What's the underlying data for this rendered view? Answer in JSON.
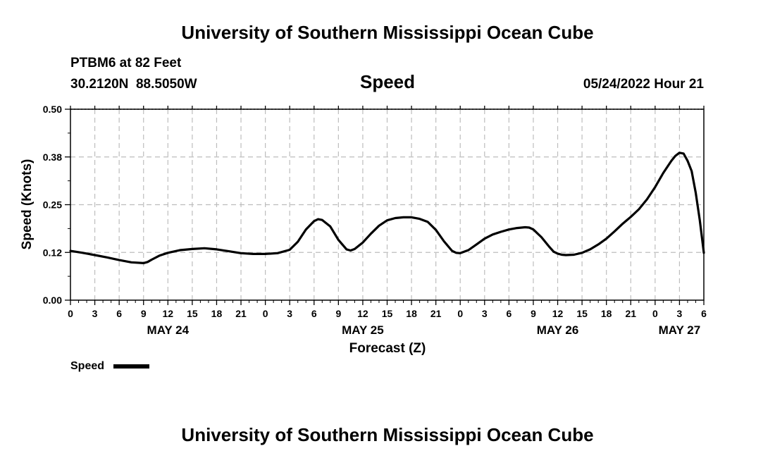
{
  "page": {
    "header_title": "University of Southern Mississippi Ocean Cube",
    "footer_title": "University of Southern Mississippi Ocean Cube",
    "station_line": "PTBM6 at 82 Feet",
    "coords_line": "30.2120N  88.5050W",
    "date_line": "05/24/2022 Hour 21"
  },
  "chart_data": {
    "type": "line",
    "title": "Speed",
    "xlabel": "Forecast (Z)",
    "ylabel": "Speed (Knots)",
    "x_unit": "hours from May 24 00Z",
    "xlim": [
      0,
      78
    ],
    "ylim": [
      0,
      0.5
    ],
    "y_ticks": [
      "0.00",
      "0.12",
      "0.25",
      "0.38",
      "0.50"
    ],
    "y_tick_values": [
      0,
      0.125,
      0.25,
      0.375,
      0.5
    ],
    "x_ticks": [
      0,
      3,
      6,
      9,
      12,
      15,
      18,
      21,
      24,
      27,
      30,
      33,
      36,
      39,
      42,
      45,
      48,
      51,
      54,
      57,
      60,
      63,
      66,
      69,
      72,
      75,
      78
    ],
    "x_tick_labels": [
      "0",
      "3",
      "6",
      "9",
      "12",
      "15",
      "18",
      "21",
      "0",
      "3",
      "6",
      "9",
      "12",
      "15",
      "18",
      "21",
      "0",
      "3",
      "6",
      "9",
      "12",
      "15",
      "18",
      "21",
      "0",
      "3",
      "6"
    ],
    "day_labels": [
      {
        "x": 12,
        "label": "MAY 24"
      },
      {
        "x": 36,
        "label": "MAY 25"
      },
      {
        "x": 60,
        "label": "MAY 26"
      },
      {
        "x": 75,
        "label": "MAY 27"
      }
    ],
    "grid": true,
    "legend": {
      "position": "bottom-left",
      "entries": [
        {
          "name": "Speed",
          "color": "#000000"
        }
      ]
    },
    "series": [
      {
        "name": "Speed",
        "color": "#000000",
        "x": [
          0,
          1.5,
          3,
          4.5,
          6,
          7.5,
          9,
          9.5,
          10,
          11,
          12,
          13.5,
          15,
          16.5,
          18,
          19.5,
          21,
          22.5,
          24,
          25.5,
          27,
          28,
          29,
          30,
          30.5,
          31,
          32,
          33,
          34,
          34.5,
          35,
          36,
          37,
          38,
          39,
          40,
          41,
          42,
          43,
          44,
          45,
          46,
          47,
          47.5,
          48,
          49,
          50,
          51,
          52,
          53,
          54,
          55,
          56,
          56.5,
          57,
          58,
          59,
          59.5,
          60,
          60.5,
          61,
          62,
          63,
          64,
          65,
          66,
          67,
          68,
          69,
          70,
          71,
          72,
          73,
          74,
          74.5,
          75,
          75.5,
          76,
          76.5,
          77,
          77.5,
          78
        ],
        "y": [
          0.129,
          0.124,
          0.118,
          0.112,
          0.105,
          0.099,
          0.097,
          0.1,
          0.106,
          0.117,
          0.124,
          0.131,
          0.134,
          0.136,
          0.133,
          0.128,
          0.123,
          0.121,
          0.121,
          0.123,
          0.132,
          0.153,
          0.185,
          0.207,
          0.212,
          0.21,
          0.193,
          0.158,
          0.133,
          0.13,
          0.134,
          0.151,
          0.174,
          0.195,
          0.209,
          0.215,
          0.217,
          0.217,
          0.213,
          0.205,
          0.184,
          0.154,
          0.129,
          0.124,
          0.123,
          0.131,
          0.146,
          0.161,
          0.172,
          0.179,
          0.185,
          0.189,
          0.191,
          0.19,
          0.185,
          0.165,
          0.139,
          0.127,
          0.122,
          0.119,
          0.118,
          0.119,
          0.124,
          0.133,
          0.146,
          0.161,
          0.18,
          0.2,
          0.218,
          0.238,
          0.264,
          0.296,
          0.333,
          0.365,
          0.378,
          0.386,
          0.384,
          0.365,
          0.338,
          0.281,
          0.21,
          0.124
        ]
      }
    ]
  }
}
